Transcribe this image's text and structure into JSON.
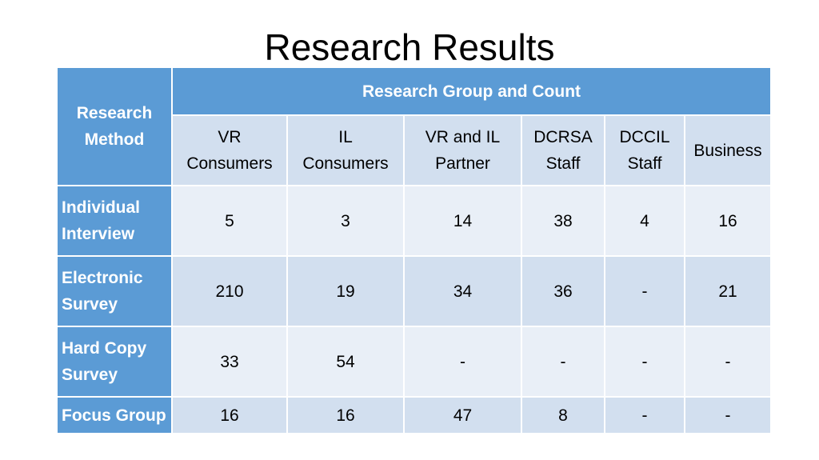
{
  "title": "Research Results",
  "table": {
    "corner_header": [
      "Research",
      "Method"
    ],
    "group_header": "Research Group and Count",
    "columns": [
      [
        "VR",
        "Consumers"
      ],
      [
        "IL",
        "Consumers"
      ],
      [
        "VR and IL",
        "Partner"
      ],
      [
        "DCRSA",
        "Staff"
      ],
      [
        "DCCIL",
        "Staff"
      ],
      [
        "Business"
      ]
    ],
    "rows": [
      {
        "method": [
          "Individual",
          "Interview"
        ],
        "values": [
          "5",
          "3",
          "14",
          "38",
          "4",
          "16"
        ]
      },
      {
        "method": [
          "Electronic",
          "Survey"
        ],
        "values": [
          "210",
          "19",
          "34",
          "36",
          "-",
          "21"
        ]
      },
      {
        "method": [
          "Hard Copy",
          "Survey"
        ],
        "values": [
          "33",
          "54",
          "-",
          "-",
          "-",
          "-"
        ]
      },
      {
        "method": [
          "Focus Group"
        ],
        "values": [
          "16",
          "16",
          "47",
          "8",
          "-",
          "-"
        ]
      }
    ],
    "colors": {
      "header_blue": "#5b9bd5",
      "row_light": "#e9eff7",
      "row_dark": "#d2dfef"
    }
  }
}
